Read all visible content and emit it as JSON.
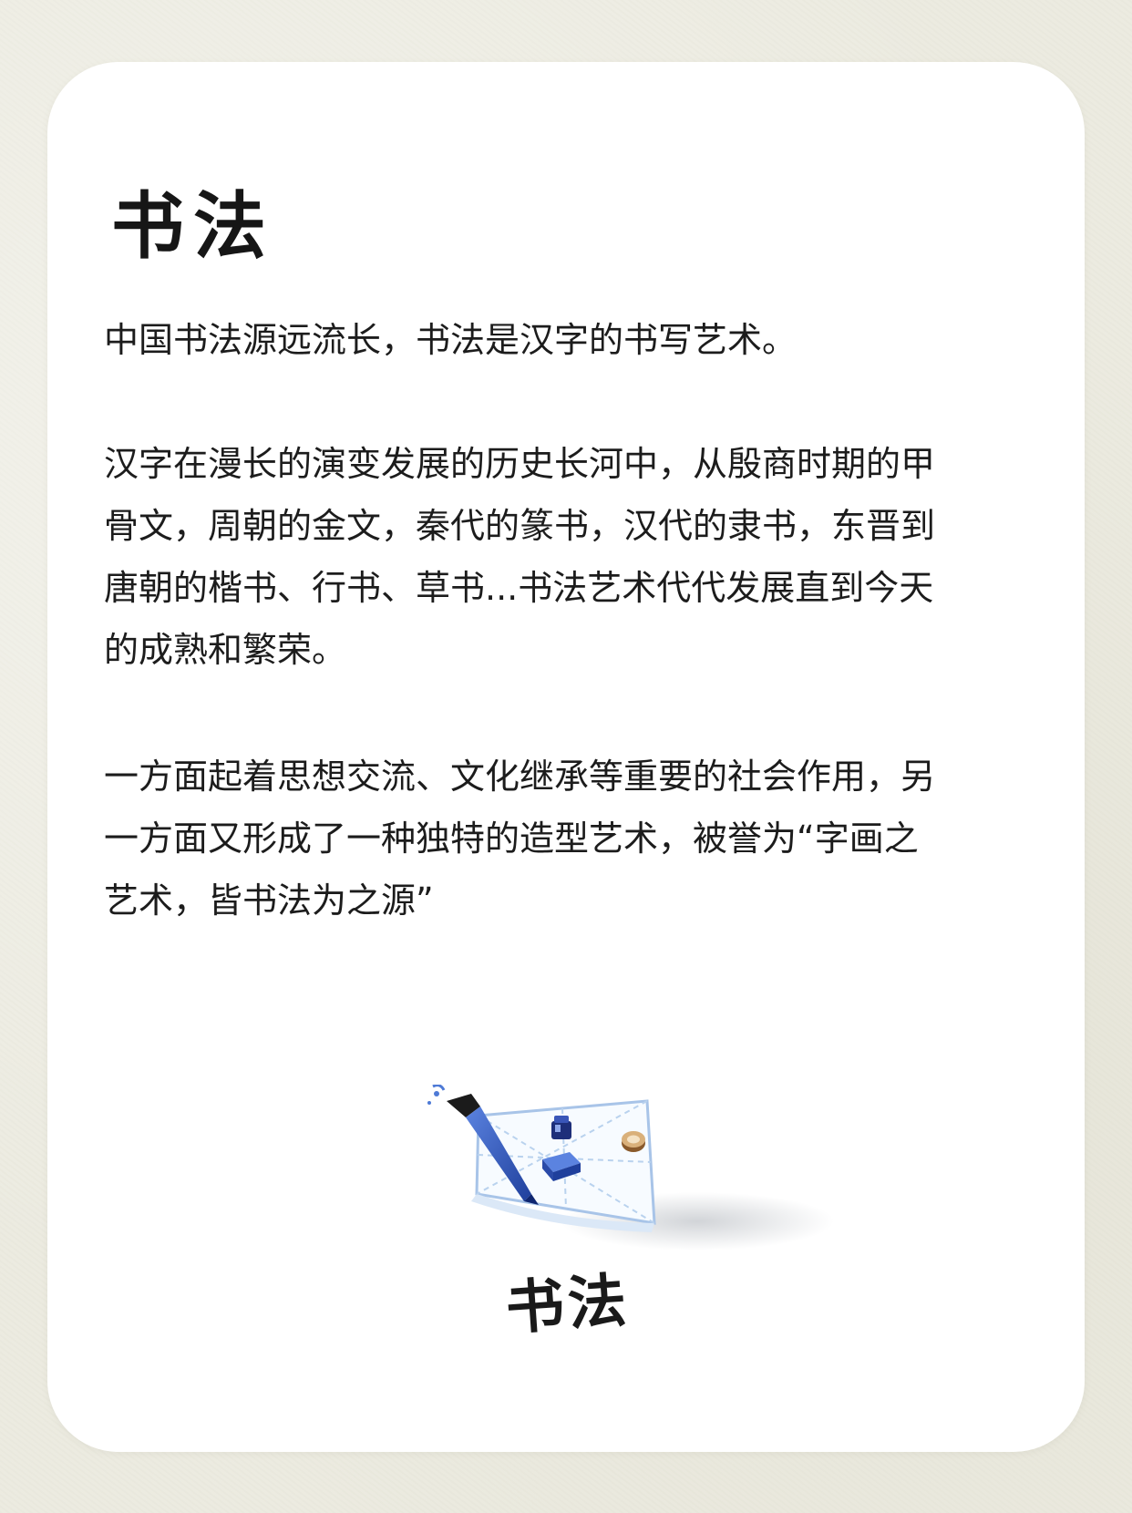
{
  "page": {
    "title": "书法",
    "paragraphs": [
      "中国书法源远流长，书法是汉字的书写艺术。",
      "汉字在漫长的演变发展的历史长河中，从殷商时期的甲\n骨文，周朝的金文，秦代的篆书，汉代的隶书，东晋到\n唐朝的楷书、行书、草书...书法艺术代代发展直到今天\n的成熟和繁荣。",
      "一方面起着思想交流、文化继承等重要的社会作用，另\n一方面又形成了一种独特的造型艺术，被誉为“字画之\n艺术，皆书法为之源”"
    ],
    "illustration_caption": "书法"
  },
  "colors": {
    "background": "#ecebe0",
    "card": "#ffffff",
    "text": "#1c1c1c",
    "accent_blue": "#2f56b8"
  },
  "icons": [
    "calligraphy-brush-icon",
    "ink-bottle-icon",
    "inkstone-icon",
    "seal-icon",
    "rice-paper-grid-icon"
  ]
}
